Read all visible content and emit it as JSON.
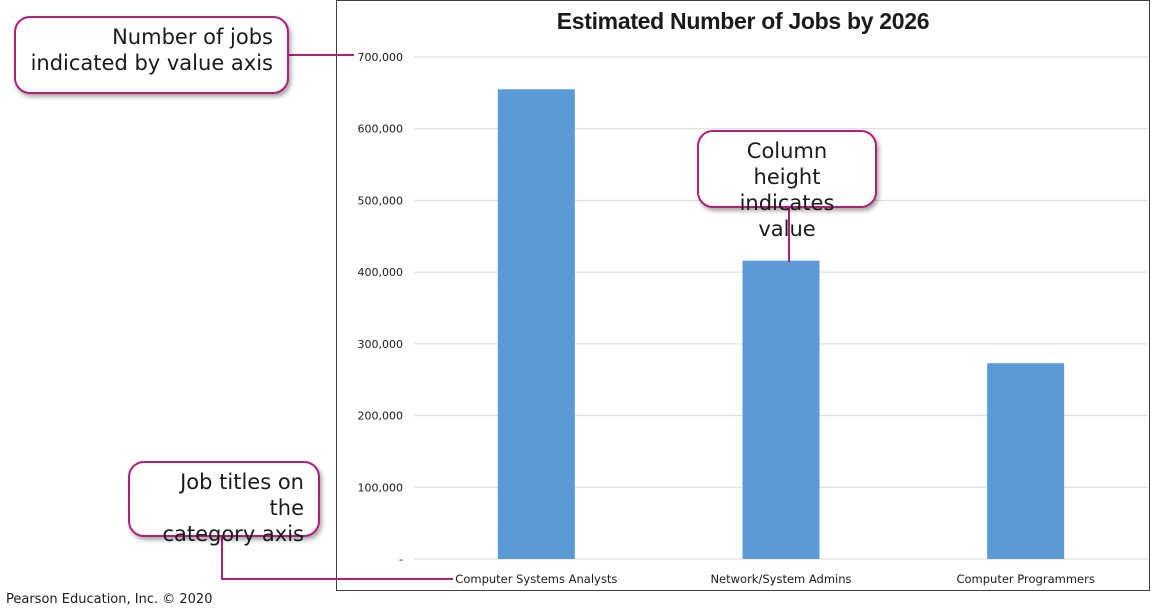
{
  "chart_data": {
    "type": "bar",
    "title": "Estimated Number of Jobs by 2026",
    "categories": [
      "Computer Systems Analysts",
      "Network/System Admins",
      "Computer Programmers"
    ],
    "values": [
      655000,
      416000,
      273000
    ],
    "xlabel": "",
    "ylabel": "",
    "ylim": [
      0,
      700000
    ],
    "yticks": [
      0,
      100000,
      200000,
      300000,
      400000,
      500000,
      600000,
      700000
    ],
    "ytick_labels": [
      "-",
      "100,000",
      "200,000",
      "300,000",
      "400,000",
      "500,000",
      "600,000",
      "700,000"
    ],
    "grid": true,
    "legend": "none",
    "bar_color": "#5b9bd5"
  },
  "callouts": {
    "value_axis": [
      "Number of jobs",
      "indicated by value axis"
    ],
    "column_height": [
      "Column height",
      "indicates value"
    ],
    "category_axis": [
      "Job titles on the",
      "category axis"
    ]
  },
  "callout_color": "#b01f7a",
  "credit": "Pearson Education, Inc. © 2020"
}
